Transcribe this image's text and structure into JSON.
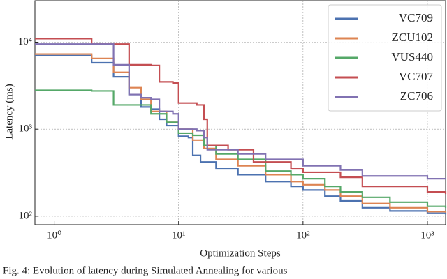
{
  "chart_data": {
    "type": "line",
    "x_label": "Optimization Steps",
    "y_label": "Latency (ms)",
    "caption": "Fig. 4: Evolution of latency during Simulated Annealing for various",
    "xscale": "log",
    "yscale": "log",
    "grid": true,
    "legend": "upper right",
    "drawstyle": "steps",
    "xlim": [
      0.7,
      1400
    ],
    "ylim": [
      80,
      30000
    ],
    "xticks": [
      {
        "value": 1,
        "label": "10⁰"
      },
      {
        "value": 10,
        "label": "10¹"
      },
      {
        "value": 100,
        "label": "10²"
      },
      {
        "value": 1000,
        "label": "10³"
      }
    ],
    "yticks": [
      {
        "value": 100,
        "label": "10²"
      },
      {
        "value": 1000,
        "label": "10³"
      },
      {
        "value": 10000,
        "label": "10⁴"
      }
    ],
    "series": [
      {
        "name": "VC709",
        "color": "#4c72b0",
        "x": [
          0.7,
          1,
          2,
          3,
          4,
          5,
          6,
          7,
          8,
          10,
          12,
          13,
          15,
          20,
          30,
          50,
          80,
          100,
          150,
          200,
          300,
          500,
          1000,
          1400
        ],
        "values": [
          7000,
          7000,
          5800,
          4000,
          2500,
          1800,
          1700,
          1300,
          1100,
          830,
          800,
          500,
          420,
          350,
          300,
          250,
          220,
          200,
          170,
          150,
          125,
          115,
          108,
          105
        ]
      },
      {
        "name": "ZCU102",
        "color": "#dd8452",
        "x": [
          0.7,
          1,
          2,
          3,
          4,
          5,
          6,
          8,
          10,
          13,
          16,
          20,
          30,
          50,
          80,
          100,
          150,
          200,
          300,
          500,
          1000,
          1400
        ],
        "values": [
          7300,
          7300,
          6500,
          4500,
          3000,
          2200,
          1600,
          1200,
          1000,
          750,
          600,
          450,
          380,
          300,
          250,
          230,
          200,
          170,
          140,
          125,
          113,
          110
        ]
      },
      {
        "name": "VUS440",
        "color": "#55a868",
        "x": [
          0.7,
          2,
          3,
          5,
          6,
          8,
          10,
          13,
          16,
          20,
          30,
          50,
          80,
          100,
          150,
          200,
          300,
          500,
          1000,
          1400
        ],
        "values": [
          2800,
          2750,
          1900,
          1900,
          1500,
          1200,
          900,
          850,
          650,
          520,
          450,
          330,
          300,
          270,
          220,
          190,
          165,
          145,
          130,
          125
        ]
      },
      {
        "name": "VC707",
        "color": "#c44e52",
        "x": [
          0.7,
          1,
          2,
          4,
          6,
          7,
          9,
          10,
          14,
          16,
          17,
          25,
          40,
          80,
          100,
          200,
          300,
          1000,
          1400
        ],
        "values": [
          11000,
          11000,
          9500,
          5500,
          5400,
          3500,
          3400,
          2000,
          1900,
          1300,
          650,
          580,
          420,
          350,
          320,
          280,
          220,
          190,
          180
        ]
      },
      {
        "name": "ZC706",
        "color": "#8172b2",
        "x": [
          0.7,
          2,
          3,
          4,
          5,
          6,
          7,
          9,
          10,
          14,
          16,
          17,
          30,
          50,
          100,
          200,
          300,
          1000,
          1400
        ],
        "values": [
          9500,
          9500,
          5500,
          2500,
          2300,
          2200,
          1600,
          1500,
          1000,
          960,
          800,
          580,
          520,
          450,
          380,
          340,
          290,
          270,
          270
        ]
      }
    ]
  }
}
